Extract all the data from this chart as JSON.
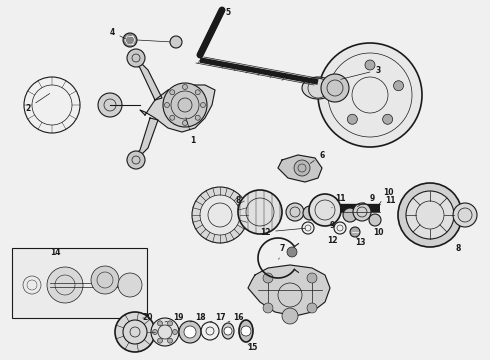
{
  "bg_color": "#f0f0f0",
  "line_color": "#1a1a1a",
  "fig_width": 4.9,
  "fig_height": 3.6,
  "dpi": 100
}
